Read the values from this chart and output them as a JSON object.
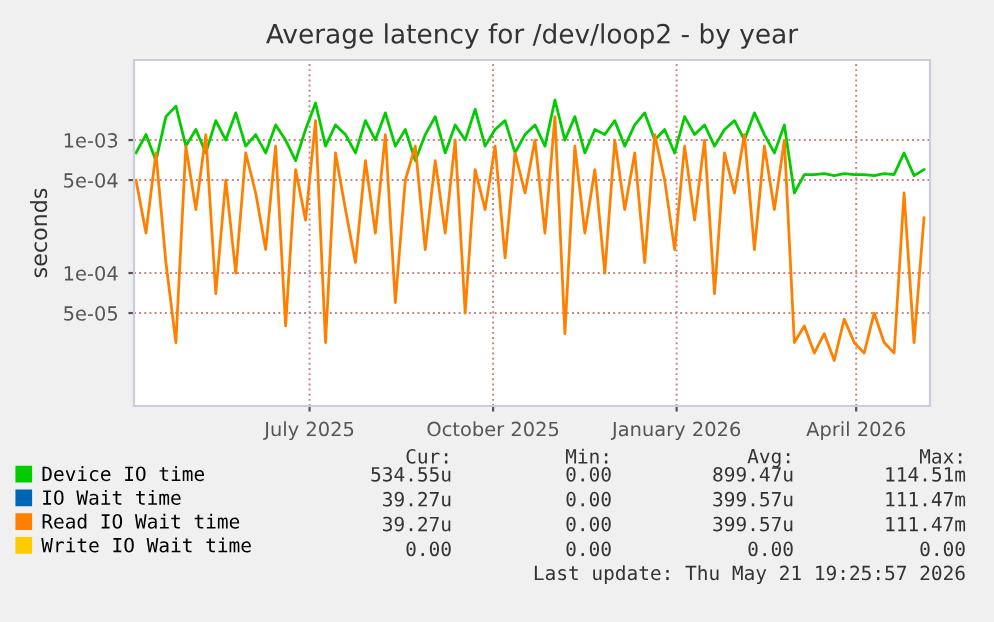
{
  "chart_data": {
    "type": "line",
    "title": "Average latency for /dev/loop2 - by year",
    "ylabel": "seconds",
    "log": true,
    "grid": true,
    "legend": "bottom",
    "marker": "none",
    "line_style": "solid",
    "x": [
      "2025-04-05",
      "2025-04-10",
      "2025-04-15",
      "2025-04-20",
      "2025-04-25",
      "2025-04-30",
      "2025-05-05",
      "2025-05-10",
      "2025-05-15",
      "2025-05-20",
      "2025-05-25",
      "2025-05-30",
      "2025-06-04",
      "2025-06-09",
      "2025-06-14",
      "2025-06-19",
      "2025-06-24",
      "2025-06-29",
      "2025-07-04",
      "2025-07-09",
      "2025-07-14",
      "2025-07-19",
      "2025-07-24",
      "2025-07-29",
      "2025-08-03",
      "2025-08-08",
      "2025-08-13",
      "2025-08-18",
      "2025-08-23",
      "2025-08-28",
      "2025-09-02",
      "2025-09-07",
      "2025-09-12",
      "2025-09-17",
      "2025-09-22",
      "2025-09-27",
      "2025-10-02",
      "2025-10-07",
      "2025-10-12",
      "2025-10-17",
      "2025-10-22",
      "2025-10-27",
      "2025-11-01",
      "2025-11-06",
      "2025-11-11",
      "2025-11-16",
      "2025-11-21",
      "2025-11-26",
      "2025-12-01",
      "2025-12-06",
      "2025-12-11",
      "2025-12-16",
      "2025-12-21",
      "2025-12-26",
      "2025-12-31",
      "2026-01-05",
      "2026-01-10",
      "2026-01-15",
      "2026-01-20",
      "2026-01-25",
      "2026-01-30",
      "2026-02-04",
      "2026-02-09",
      "2026-02-14",
      "2026-02-19",
      "2026-02-24",
      "2026-03-01",
      "2026-03-06",
      "2026-03-11",
      "2026-03-16",
      "2026-03-21",
      "2026-03-26",
      "2026-03-31",
      "2026-04-05",
      "2026-04-10",
      "2026-04-15",
      "2026-04-20",
      "2026-04-25",
      "2026-04-30",
      "2026-05-05"
    ],
    "xlim": [
      "2025-04-04",
      "2026-05-08"
    ],
    "xticks": [
      {
        "value": "2025-07-01",
        "label": "July 2025"
      },
      {
        "value": "2025-10-01",
        "label": "October 2025"
      },
      {
        "value": "2026-01-01",
        "label": "January 2026"
      },
      {
        "value": "2026-04-01",
        "label": "April 2026"
      }
    ],
    "ylim": [
      1e-05,
      0.004
    ],
    "yticks": [
      {
        "value": 5e-05,
        "label": "5e-05"
      },
      {
        "value": 0.0001,
        "label": "1e-04"
      },
      {
        "value": 0.0005,
        "label": "5e-04"
      },
      {
        "value": 0.001,
        "label": "1e-03"
      }
    ],
    "series": [
      {
        "name": "Device IO time",
        "color": "#00cc00",
        "values": [
          0.0008,
          0.0011,
          0.0007,
          0.0015,
          0.0018,
          0.0009,
          0.0012,
          0.0008,
          0.0014,
          0.001,
          0.0016,
          0.0009,
          0.0011,
          0.0008,
          0.0013,
          0.001,
          0.0007,
          0.0012,
          0.0019,
          0.0009,
          0.0013,
          0.0011,
          0.0008,
          0.0014,
          0.001,
          0.0016,
          0.0009,
          0.0012,
          0.0007,
          0.0011,
          0.0015,
          0.0008,
          0.0013,
          0.001,
          0.0017,
          0.0009,
          0.0012,
          0.0014,
          0.0008,
          0.0011,
          0.0013,
          0.0009,
          0.002,
          0.001,
          0.0015,
          0.0008,
          0.0012,
          0.0011,
          0.0014,
          0.0009,
          0.0013,
          0.0016,
          0.001,
          0.0012,
          0.0008,
          0.0015,
          0.0011,
          0.0013,
          0.0009,
          0.0012,
          0.0014,
          0.001,
          0.0016,
          0.0011,
          0.0008,
          0.0013,
          0.0004,
          0.00055,
          0.00055,
          0.00056,
          0.00054,
          0.00056,
          0.00055,
          0.00055,
          0.00054,
          0.00056,
          0.00055,
          0.0008,
          0.00054,
          0.0006
        ]
      },
      {
        "name": "IO Wait time",
        "color": "#0066b3",
        "values": [
          null,
          null,
          null,
          null,
          null,
          null,
          null,
          null,
          null,
          null,
          null,
          null,
          null,
          null,
          null,
          null,
          null,
          null,
          null,
          null,
          null,
          null,
          null,
          null,
          null,
          null,
          null,
          null,
          null,
          null,
          null,
          null,
          null,
          null,
          null,
          null,
          null,
          null,
          null,
          null,
          null,
          null,
          null,
          null,
          null,
          null,
          null,
          null,
          null,
          null,
          null,
          null,
          null,
          null,
          null,
          null,
          null,
          null,
          null,
          null,
          null,
          null,
          null,
          null,
          null,
          null,
          null,
          null,
          null,
          null,
          null,
          null,
          null,
          null,
          null,
          null,
          null,
          null,
          null,
          null
        ]
      },
      {
        "name": "Read IO Wait time",
        "color": "#ff8000",
        "values": [
          0.0005,
          0.0002,
          0.0008,
          0.00012,
          3e-05,
          0.0009,
          0.0003,
          0.0011,
          7e-05,
          0.0005,
          0.0001,
          0.0008,
          0.0004,
          0.00015,
          0.0009,
          4e-05,
          0.0006,
          0.00025,
          0.0014,
          3e-05,
          0.0008,
          0.0003,
          0.00012,
          0.0007,
          0.0002,
          0.0011,
          6e-05,
          0.0005,
          0.0009,
          0.00015,
          0.0007,
          0.0002,
          0.001,
          5e-05,
          0.0006,
          0.0003,
          0.0009,
          0.00013,
          0.0008,
          0.0004,
          0.001,
          0.0002,
          0.0015,
          3.5e-05,
          0.0009,
          0.0002,
          0.0006,
          0.0001,
          0.001,
          0.0003,
          0.0008,
          0.00012,
          0.0011,
          0.0005,
          0.00015,
          0.0009,
          0.00025,
          0.001,
          7e-05,
          0.0008,
          0.0004,
          0.0011,
          0.00015,
          0.0009,
          0.0003,
          0.001,
          3e-05,
          4e-05,
          2.5e-05,
          3.5e-05,
          2.2e-05,
          4.5e-05,
          3e-05,
          2.5e-05,
          5e-05,
          3e-05,
          2.5e-05,
          0.0004,
          3e-05,
          0.00026
        ]
      },
      {
        "name": "Write IO Wait time",
        "color": "#ffcc00",
        "values": [
          null,
          null,
          null,
          null,
          null,
          null,
          null,
          null,
          null,
          null,
          null,
          null,
          null,
          null,
          null,
          null,
          null,
          null,
          null,
          null,
          null,
          null,
          null,
          null,
          null,
          null,
          null,
          null,
          null,
          null,
          null,
          null,
          null,
          null,
          null,
          null,
          null,
          null,
          null,
          null,
          null,
          null,
          null,
          null,
          null,
          null,
          null,
          null,
          null,
          null,
          null,
          null,
          null,
          null,
          null,
          null,
          null,
          null,
          null,
          null,
          null,
          null,
          null,
          null,
          null,
          null,
          null,
          null,
          null,
          null,
          null,
          null,
          null,
          null,
          null,
          null,
          null,
          null,
          null,
          null
        ]
      }
    ],
    "annotations": [
      "Cur:",
      "Min:",
      "Avg:",
      "Max:",
      "534.55u",
      "0.00",
      "899.47u",
      "114.51m",
      "39.27u",
      "0.00",
      "399.57u",
      "111.47m",
      "39.27u",
      "0.00",
      "399.57u",
      "111.47m",
      "0.00",
      "0.00",
      "0.00",
      "0.00",
      "Last update: Thu May 21 19:25:57 2026"
    ]
  }
}
